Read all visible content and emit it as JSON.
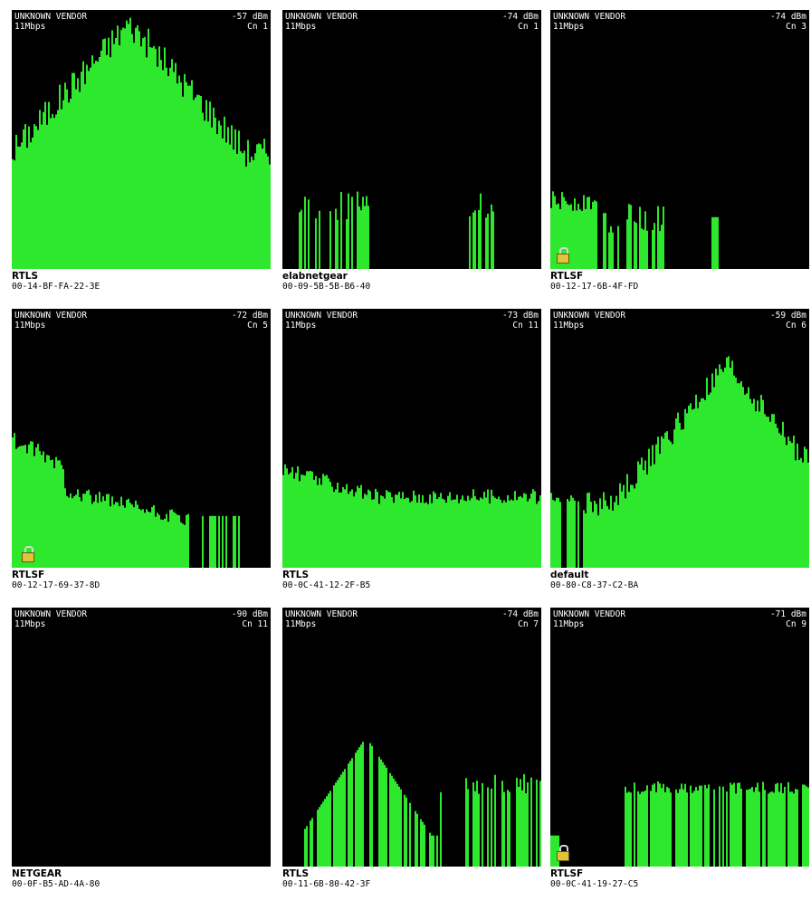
{
  "colors": {
    "panel_bg": "#000000",
    "bar": "#2ee82e",
    "page_bg": "#ffffff",
    "lock": "#e2c33a"
  },
  "panels": [
    {
      "vendor": "UNKNOWN VENDOR",
      "rate": "11Mbps",
      "signal": "-57 dBm",
      "channel": "Cn 1",
      "ssid": "RTLS",
      "mac": "00-14-BF-FA-22-3E",
      "locked": false
    },
    {
      "vendor": "UNKNOWN VENDOR",
      "rate": "11Mbps",
      "signal": "-74 dBm",
      "channel": "Cn 1",
      "ssid": "elabnetgear",
      "mac": "00-09-5B-5B-B6-40",
      "locked": false
    },
    {
      "vendor": "UNKNOWN VENDOR",
      "rate": "11Mbps",
      "signal": "-74 dBm",
      "channel": "Cn 3",
      "ssid": "RTLSF",
      "mac": "00-12-17-6B-4F-FD",
      "locked": true
    },
    {
      "vendor": "UNKNOWN VENDOR",
      "rate": "11Mbps",
      "signal": "-72 dBm",
      "channel": "Cn 5",
      "ssid": "RTLSF",
      "mac": "00-12-17-69-37-8D",
      "locked": true
    },
    {
      "vendor": "UNKNOWN VENDOR",
      "rate": "11Mbps",
      "signal": "-73 dBm",
      "channel": "Cn 11",
      "ssid": "RTLS",
      "mac": "00-0C-41-12-2F-B5",
      "locked": false
    },
    {
      "vendor": "UNKNOWN VENDOR",
      "rate": "11Mbps",
      "signal": "-59 dBm",
      "channel": "Cn 6",
      "ssid": "default",
      "mac": "00-80-C8-37-C2-BA",
      "locked": false
    },
    {
      "vendor": "UNKNOWN VENDOR",
      "rate": "11Mbps",
      "signal": "-90 dBm",
      "channel": "Cn 11",
      "ssid": "NETGEAR",
      "mac": "00-0F-B5-AD-4A-80",
      "locked": false
    },
    {
      "vendor": "UNKNOWN VENDOR",
      "rate": "11Mbps",
      "signal": "-74 dBm",
      "channel": "Cn 7",
      "ssid": "RTLS",
      "mac": "00-11-6B-80-42-3F",
      "locked": false
    },
    {
      "vendor": "UNKNOWN VENDOR",
      "rate": "11Mbps",
      "signal": "-71 dBm",
      "channel": "Cn 9",
      "ssid": "RTLSF",
      "mac": "00-0C-41-19-27-C5",
      "locked": true
    }
  ]
}
